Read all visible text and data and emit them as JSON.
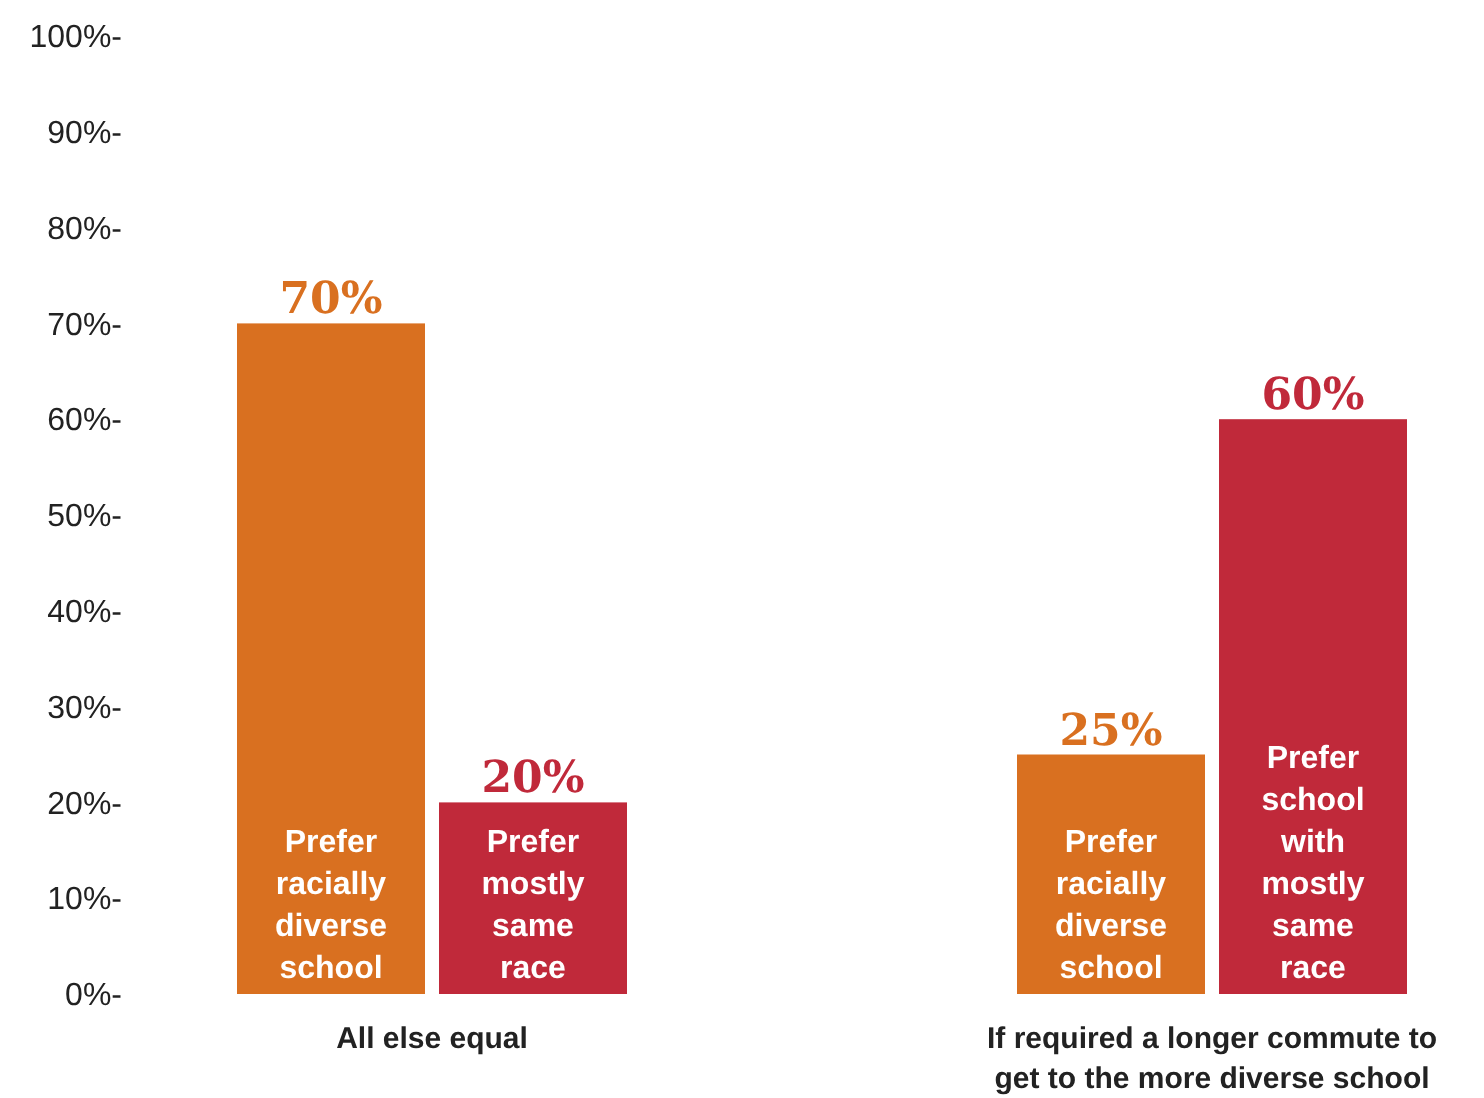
{
  "chart_data": {
    "type": "bar",
    "categories": [
      "All else equal",
      "If required a longer commute to get to the more diverse school"
    ],
    "series": [
      {
        "color": "#d97020",
        "values": [
          70,
          25
        ],
        "value_labels": [
          "70%",
          "25%"
        ]
      },
      {
        "color": "#c0293a",
        "values": [
          20,
          60
        ],
        "value_labels": [
          "20%",
          "60%"
        ]
      }
    ],
    "ylim": [
      0,
      100
    ],
    "yticks": [
      {
        "value": 0,
        "label": "0%-"
      },
      {
        "value": 10,
        "label": "10%-"
      },
      {
        "value": 20,
        "label": "20%-"
      },
      {
        "value": 30,
        "label": "30%-"
      },
      {
        "value": 40,
        "label": "40%-"
      },
      {
        "value": 50,
        "label": "50%-"
      },
      {
        "value": 60,
        "label": "60%-"
      },
      {
        "value": 70,
        "label": "70%-"
      },
      {
        "value": 80,
        "label": "80%-"
      },
      {
        "value": 90,
        "label": "90%-"
      },
      {
        "value": 100,
        "label": "100%-"
      }
    ],
    "annotations": [
      "Prefer racially diverse school",
      "Prefer mostly same race",
      "Prefer racially diverse school",
      "Prefer school with mostly same race"
    ]
  }
}
